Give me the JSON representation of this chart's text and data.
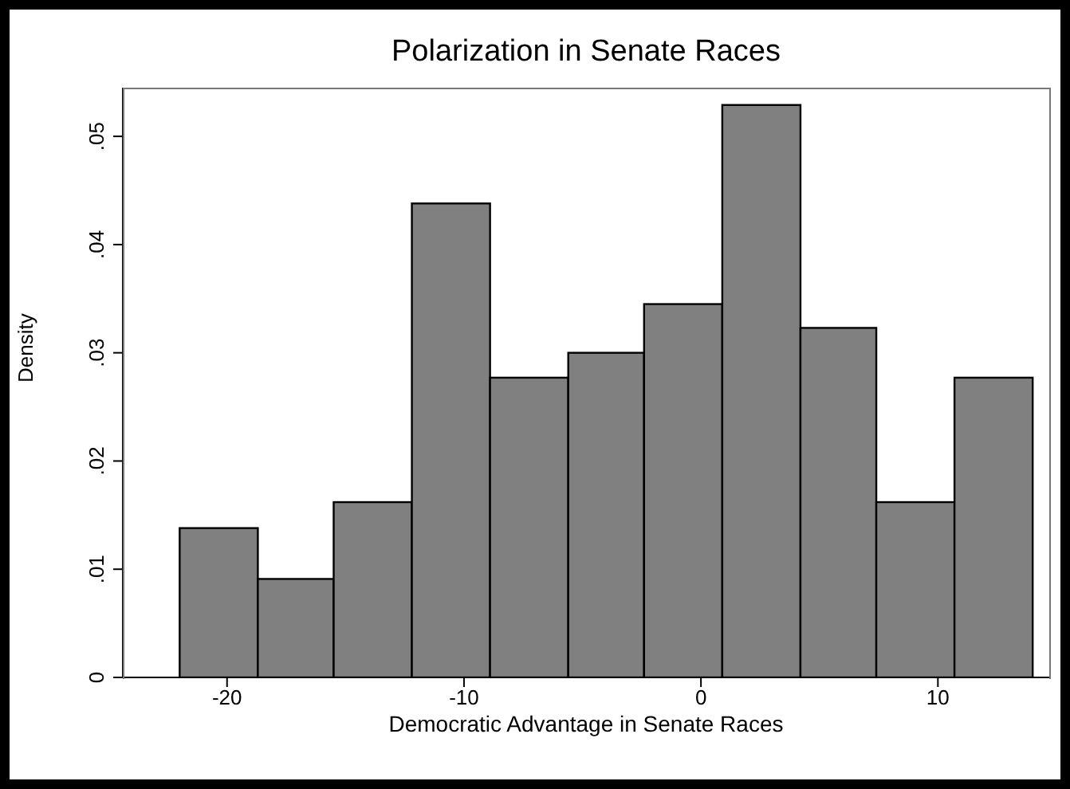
{
  "chart_data": {
    "type": "histogram",
    "title": "Polarization in Senate Races",
    "xlabel": "Democratic Advantage in Senate Races",
    "ylabel": "Density",
    "bins": [
      -22,
      -18.7,
      -15.5,
      -12.2,
      -8.9,
      -5.6,
      -2.4,
      0.9,
      4.2,
      7.4,
      10.7,
      14.0
    ],
    "values": [
      0.0138,
      0.0091,
      0.0162,
      0.0438,
      0.0277,
      0.03,
      0.0345,
      0.0529,
      0.0323,
      0.0162,
      0.0277
    ],
    "color": "#808080",
    "xlim": [
      -24.4,
      14.7
    ],
    "xticks": [
      -20,
      -10,
      0,
      10
    ],
    "ylim": [
      0,
      0.0545
    ],
    "yticks": [
      0,
      {
        "value": 0.01,
        "label": ".01"
      },
      {
        "value": 0.02,
        "label": ".02"
      },
      {
        "value": 0.03,
        "label": ".03"
      },
      {
        "value": 0.04,
        "label": ".04"
      },
      {
        "value": 0.05,
        "label": ".05"
      }
    ],
    "grid": false,
    "legend": false
  }
}
